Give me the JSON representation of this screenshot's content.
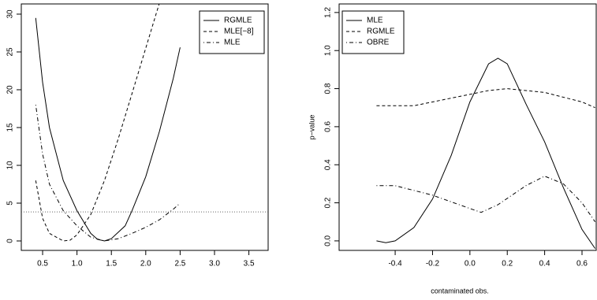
{
  "chart_data": [
    {
      "type": "line",
      "legend": "top-right",
      "xlim": [
        0.19,
        3.78
      ],
      "ylim": [
        -1.25,
        31.35
      ],
      "xticks": [
        0.5,
        {
          "value": 1,
          "label": "1.0"
        },
        1.5,
        {
          "value": 2,
          "label": "2.0"
        },
        2.5,
        {
          "value": 3,
          "label": "3.0"
        },
        3.5
      ],
      "yticks": [
        0,
        5,
        10,
        15,
        20,
        25,
        30
      ],
      "hline": 3.84,
      "series": [
        {
          "name": "RGMLE",
          "color": "#000000",
          "linestyle": "solid",
          "x": [
            0.4,
            0.5,
            0.6,
            0.8,
            1.0,
            1.2,
            1.3,
            1.4,
            1.5,
            1.7,
            1.8,
            2.0,
            2.2,
            2.4,
            2.5
          ],
          "values": [
            29.5,
            21,
            15,
            8,
            4,
            1,
            0.2,
            0,
            0.3,
            2,
            4,
            8.5,
            14.5,
            21.5,
            25.6
          ]
        },
        {
          "name": "MLE[−8]",
          "color": "#000000",
          "linestyle": "dashed",
          "x": [
            0.4,
            0.5,
            0.6,
            0.8,
            0.9,
            1.0,
            1.2,
            1.4,
            1.6,
            1.8,
            2.0,
            2.2
          ],
          "values": [
            8,
            3,
            1,
            0,
            0.1,
            0.8,
            3.5,
            8,
            13.5,
            19.5,
            25.5,
            31.5
          ]
        },
        {
          "name": "MLE",
          "color": "#000000",
          "linestyle": "dotdash",
          "x": [
            0.4,
            0.5,
            0.6,
            0.8,
            1.0,
            1.2,
            1.4,
            1.6,
            1.8,
            2.0,
            2.2,
            2.4,
            2.5
          ],
          "values": [
            18,
            11.5,
            7.5,
            4,
            2,
            0.5,
            0,
            0.3,
            1,
            1.8,
            2.8,
            4.2,
            5
          ]
        }
      ]
    },
    {
      "type": "line",
      "legend": "top-left",
      "xlabel": "contaminated obs.",
      "ylabel": "p−value",
      "xlim": [
        -0.7,
        0.676
      ],
      "ylim": [
        -0.05,
        1.245
      ],
      "xticks": [
        -0.4,
        -0.2,
        {
          "value": 0,
          "label": "0.0"
        },
        0.2,
        0.4,
        0.6
      ],
      "yticks": [
        {
          "value": 0,
          "label": "0.0"
        },
        0.2,
        0.4,
        0.6,
        0.8,
        {
          "value": 1,
          "label": "1.0"
        },
        1.2
      ],
      "series": [
        {
          "name": "MLE",
          "color": "#000000",
          "linestyle": "solid",
          "x": [
            -0.5,
            -0.45,
            -0.4,
            -0.3,
            -0.2,
            -0.1,
            0.0,
            0.1,
            0.15,
            0.2,
            0.3,
            0.4,
            0.5,
            0.6,
            0.67
          ],
          "values": [
            0.0,
            -0.01,
            0.0,
            0.07,
            0.22,
            0.45,
            0.73,
            0.93,
            0.96,
            0.93,
            0.72,
            0.52,
            0.28,
            0.06,
            -0.04
          ]
        },
        {
          "name": "RGMLE",
          "color": "#000000",
          "linestyle": "dashed",
          "x": [
            -0.5,
            -0.3,
            -0.1,
            0.1,
            0.2,
            0.4,
            0.6,
            0.67
          ],
          "values": [
            0.71,
            0.71,
            0.75,
            0.79,
            0.8,
            0.78,
            0.73,
            0.7
          ]
        },
        {
          "name": "OBRE",
          "color": "#000000",
          "linestyle": "dotdash",
          "x": [
            -0.5,
            -0.4,
            -0.2,
            0.0,
            0.06,
            0.15,
            0.3,
            0.4,
            0.5,
            0.6,
            0.67
          ],
          "values": [
            0.29,
            0.29,
            0.24,
            0.17,
            0.15,
            0.19,
            0.29,
            0.34,
            0.3,
            0.2,
            0.1
          ]
        }
      ]
    }
  ]
}
